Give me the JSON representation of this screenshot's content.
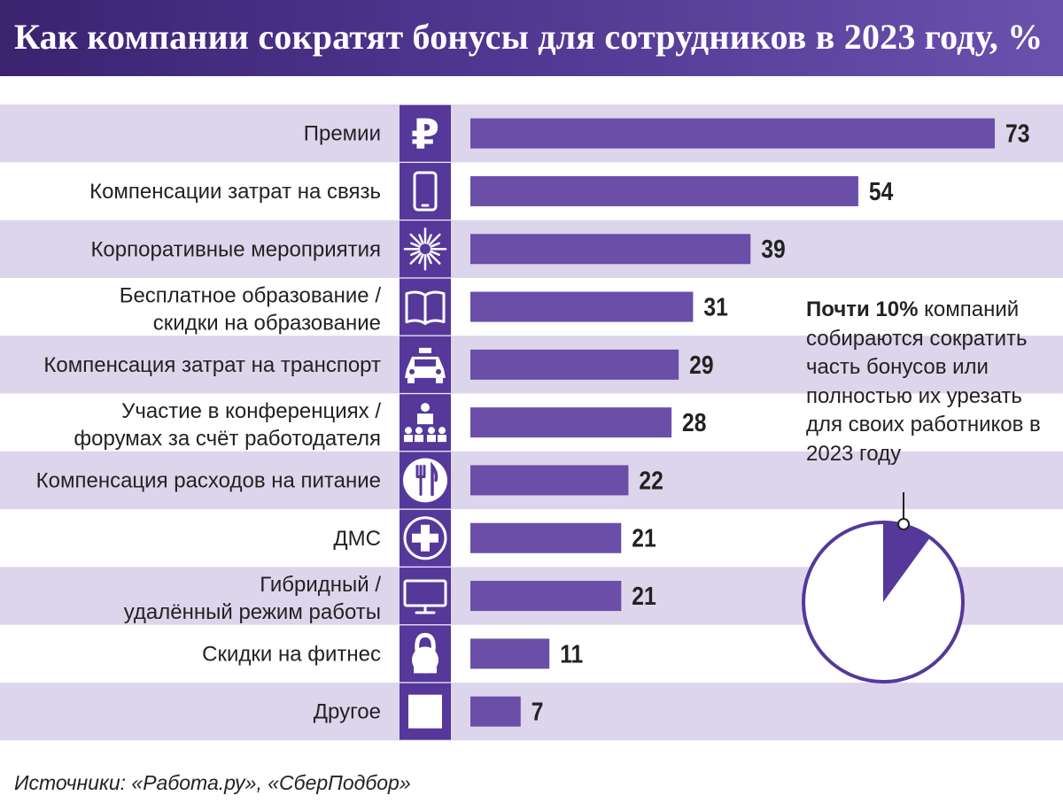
{
  "title": "Как компании сократят бонусы для сотрудников в 2023 году, %",
  "note": {
    "bold": "Почти 10%",
    "text": " компаний собираются сократить часть бонусов или полностью их урезать для своих работников в 2023 году"
  },
  "source": "Источники: «Работа.ру», «СберПодбор»",
  "colors": {
    "bar": "#6a4ea8",
    "band": "#dcd5ec",
    "icon": "#55389a",
    "header": "#3b2370"
  },
  "chart_data": {
    "type": "bar",
    "orientation": "horizontal",
    "title": "Как компании сократят бонусы для сотрудников в 2023 году, %",
    "categories": [
      [
        "Премии"
      ],
      [
        "Компенсации затрат на связь"
      ],
      [
        "Корпоративные мероприятия"
      ],
      [
        "Бесплатное образование /",
        "скидки на образование"
      ],
      [
        "Компенсация затрат на транспорт"
      ],
      [
        "Участие в конференциях /",
        "форумах за счёт работодателя"
      ],
      [
        "Компенсация расходов на питание"
      ],
      [
        "ДМС"
      ],
      [
        "Гибридный /",
        "удалённый режим работы"
      ],
      [
        "Скидки на фитнес"
      ],
      [
        "Другое"
      ]
    ],
    "icons": [
      "ruble-icon",
      "phone-icon",
      "fireworks-icon",
      "book-icon",
      "taxi-icon",
      "conference-icon",
      "cutlery-icon",
      "medical-cross-icon",
      "monitor-icon",
      "kettlebell-icon",
      "blank-square-icon"
    ],
    "values": [
      73,
      54,
      39,
      31,
      29,
      28,
      22,
      21,
      21,
      11,
      7
    ],
    "xlim": [
      0,
      73
    ],
    "pie": {
      "value": 10,
      "unit": "%"
    }
  }
}
